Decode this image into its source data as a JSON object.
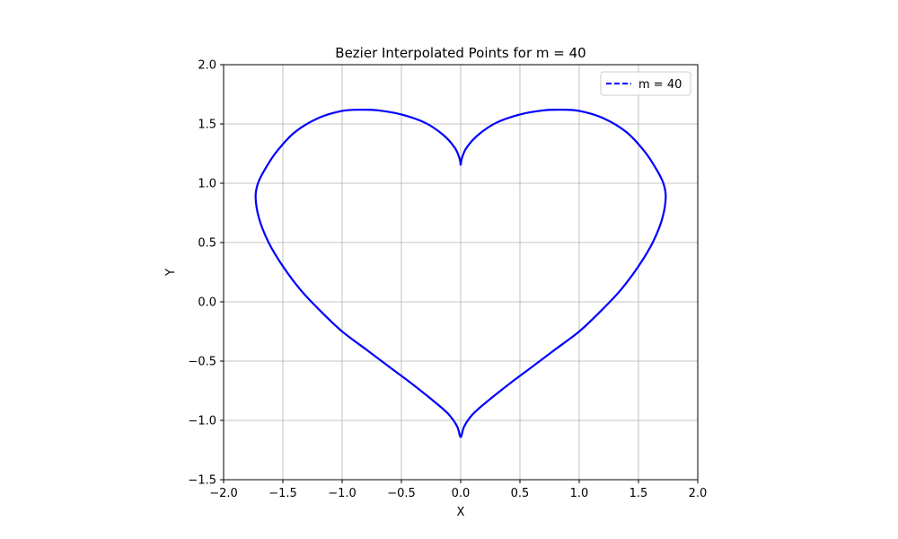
{
  "chart_data": {
    "type": "line",
    "title": "Bezier Interpolated Points for m = 40",
    "xlabel": "X",
    "ylabel": "Y",
    "xlim": [
      -2.0,
      2.0
    ],
    "ylim": [
      -1.5,
      2.0
    ],
    "x_ticks": [
      "−2.0",
      "−1.5",
      "−1.0",
      "−0.5",
      "0.0",
      "0.5",
      "1.0",
      "1.5",
      "2.0"
    ],
    "y_ticks": [
      "−1.5",
      "−1.0",
      "−0.5",
      "0.0",
      "0.5",
      "1.0",
      "1.5",
      "2.0"
    ],
    "grid": true,
    "legend_position": "top-right",
    "series": [
      {
        "name": "m = 40",
        "color": "#0000ff",
        "line_style": "dashed",
        "points": [
          [
            0.0,
            1.15
          ],
          [
            0.01,
            1.21
          ],
          [
            0.05,
            1.3
          ],
          [
            0.15,
            1.41
          ],
          [
            0.3,
            1.51
          ],
          [
            0.5,
            1.58
          ],
          [
            0.7,
            1.615
          ],
          [
            0.85,
            1.62
          ],
          [
            1.0,
            1.61
          ],
          [
            1.2,
            1.55
          ],
          [
            1.4,
            1.43
          ],
          [
            1.55,
            1.27
          ],
          [
            1.65,
            1.12
          ],
          [
            1.71,
            1.0
          ],
          [
            1.73,
            0.88
          ],
          [
            1.7,
            0.7
          ],
          [
            1.62,
            0.5
          ],
          [
            1.5,
            0.3
          ],
          [
            1.35,
            0.1
          ],
          [
            1.18,
            -0.08
          ],
          [
            1.0,
            -0.25
          ],
          [
            0.8,
            -0.4
          ],
          [
            0.6,
            -0.55
          ],
          [
            0.4,
            -0.7
          ],
          [
            0.2,
            -0.86
          ],
          [
            0.1,
            -0.95
          ],
          [
            0.03,
            -1.05
          ],
          [
            0.0,
            -1.14
          ],
          [
            -0.03,
            -1.05
          ],
          [
            -0.1,
            -0.95
          ],
          [
            -0.2,
            -0.86
          ],
          [
            -0.4,
            -0.7
          ],
          [
            -0.6,
            -0.55
          ],
          [
            -0.8,
            -0.4
          ],
          [
            -1.0,
            -0.25
          ],
          [
            -1.18,
            -0.08
          ],
          [
            -1.35,
            0.1
          ],
          [
            -1.5,
            0.3
          ],
          [
            -1.62,
            0.5
          ],
          [
            -1.7,
            0.7
          ],
          [
            -1.73,
            0.88
          ],
          [
            -1.71,
            1.0
          ],
          [
            -1.65,
            1.12
          ],
          [
            -1.55,
            1.27
          ],
          [
            -1.4,
            1.43
          ],
          [
            -1.2,
            1.55
          ],
          [
            -1.0,
            1.61
          ],
          [
            -0.85,
            1.62
          ],
          [
            -0.7,
            1.615
          ],
          [
            -0.5,
            1.58
          ],
          [
            -0.3,
            1.51
          ],
          [
            -0.15,
            1.41
          ],
          [
            -0.05,
            1.3
          ],
          [
            -0.01,
            1.21
          ],
          [
            0.0,
            1.15
          ]
        ]
      }
    ]
  }
}
